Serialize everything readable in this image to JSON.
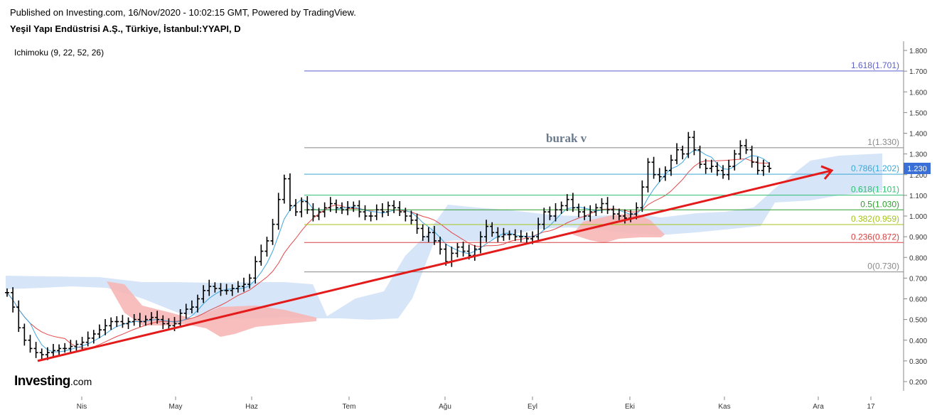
{
  "header": {
    "published": "Published on Investing.com, 16/Nov/2020 - 10:02:15 GMT, Powered by TradingView.",
    "symbol": "Yeşil Yapı Endüstrisi A.Ş., Türkiye, İstanbul:YYAPI, D",
    "indicator": "Ichimoku (9, 22, 52, 26)"
  },
  "annotation": "burak v",
  "logo": {
    "main": "Investing",
    "suffix": ".com"
  },
  "chart_data": {
    "type": "candlestick-ohlc",
    "x_ticks": [
      "Nis",
      "May",
      "Haz",
      "Tem",
      "Ağu",
      "Eyl",
      "Eki",
      "Kas",
      "Ara",
      "17"
    ],
    "y_ticks": [
      "0.200",
      "0.300",
      "0.400",
      "0.500",
      "0.600",
      "0.700",
      "0.800",
      "0.900",
      "1.000",
      "1.100",
      "1.200",
      "1.300",
      "1.400",
      "1.500",
      "1.600",
      "1.700",
      "1.800"
    ],
    "ylim": [
      0.2,
      1.8
    ],
    "last_price": "1.230",
    "fibonacci": [
      {
        "label": "1.618(1.701)",
        "value": 1.701,
        "color": "#5b5fc7"
      },
      {
        "label": "1(1.330)",
        "value": 1.33,
        "color": "#888888"
      },
      {
        "label": "0.786(1.202)",
        "value": 1.202,
        "color": "#3aa8d6"
      },
      {
        "label": "0.618(1.101)",
        "value": 1.101,
        "color": "#2fbf71"
      },
      {
        "label": "0.5(1.030)",
        "value": 1.03,
        "color": "#2e9e2e"
      },
      {
        "label": "0.382(0.959)",
        "value": 0.959,
        "color": "#a5c31c"
      },
      {
        "label": "0.236(0.872)",
        "value": 0.872,
        "color": "#d84040"
      },
      {
        "label": "0(0.730)",
        "value": 0.73,
        "color": "#888888"
      }
    ],
    "trendline": {
      "from": [
        0.05,
        0.3
      ],
      "to": [
        0.74,
        1.22
      ],
      "color": "#e31b1b"
    },
    "price_path": [
      0.63,
      0.56,
      0.46,
      0.4,
      0.36,
      0.34,
      0.33,
      0.34,
      0.35,
      0.36,
      0.36,
      0.37,
      0.38,
      0.39,
      0.41,
      0.43,
      0.45,
      0.47,
      0.49,
      0.49,
      0.48,
      0.49,
      0.5,
      0.49,
      0.5,
      0.51,
      0.5,
      0.48,
      0.47,
      0.48,
      0.53,
      0.55,
      0.56,
      0.6,
      0.64,
      0.66,
      0.65,
      0.64,
      0.64,
      0.65,
      0.66,
      0.67,
      0.7,
      0.78,
      0.83,
      0.88,
      0.96,
      1.08,
      1.18,
      1.05,
      1.02,
      1.07,
      1.03,
      1.0,
      1.02,
      1.04,
      1.06,
      1.04,
      1.03,
      1.04,
      1.05,
      1.02,
      1.0,
      1.0,
      1.03,
      1.02,
      1.05,
      1.04,
      1.02,
      1.0,
      0.98,
      0.94,
      0.9,
      0.92,
      0.88,
      0.84,
      0.78,
      0.82,
      0.85,
      0.83,
      0.81,
      0.84,
      0.9,
      0.95,
      0.92,
      0.9,
      0.91,
      0.91,
      0.9,
      0.9,
      0.89,
      0.9,
      0.96,
      1.02,
      1.0,
      1.03,
      1.05,
      1.08,
      1.04,
      1.02,
      1.0,
      1.02,
      1.04,
      1.06,
      1.03,
      1.01,
      1.0,
      0.99,
      1.01,
      1.04,
      1.14,
      1.26,
      1.2,
      1.19,
      1.22,
      1.27,
      1.32,
      1.3,
      1.38,
      1.32,
      1.25,
      1.23,
      1.24,
      1.22,
      1.2,
      1.24,
      1.3,
      1.34,
      1.32,
      1.26,
      1.22,
      1.24,
      1.23
    ]
  }
}
